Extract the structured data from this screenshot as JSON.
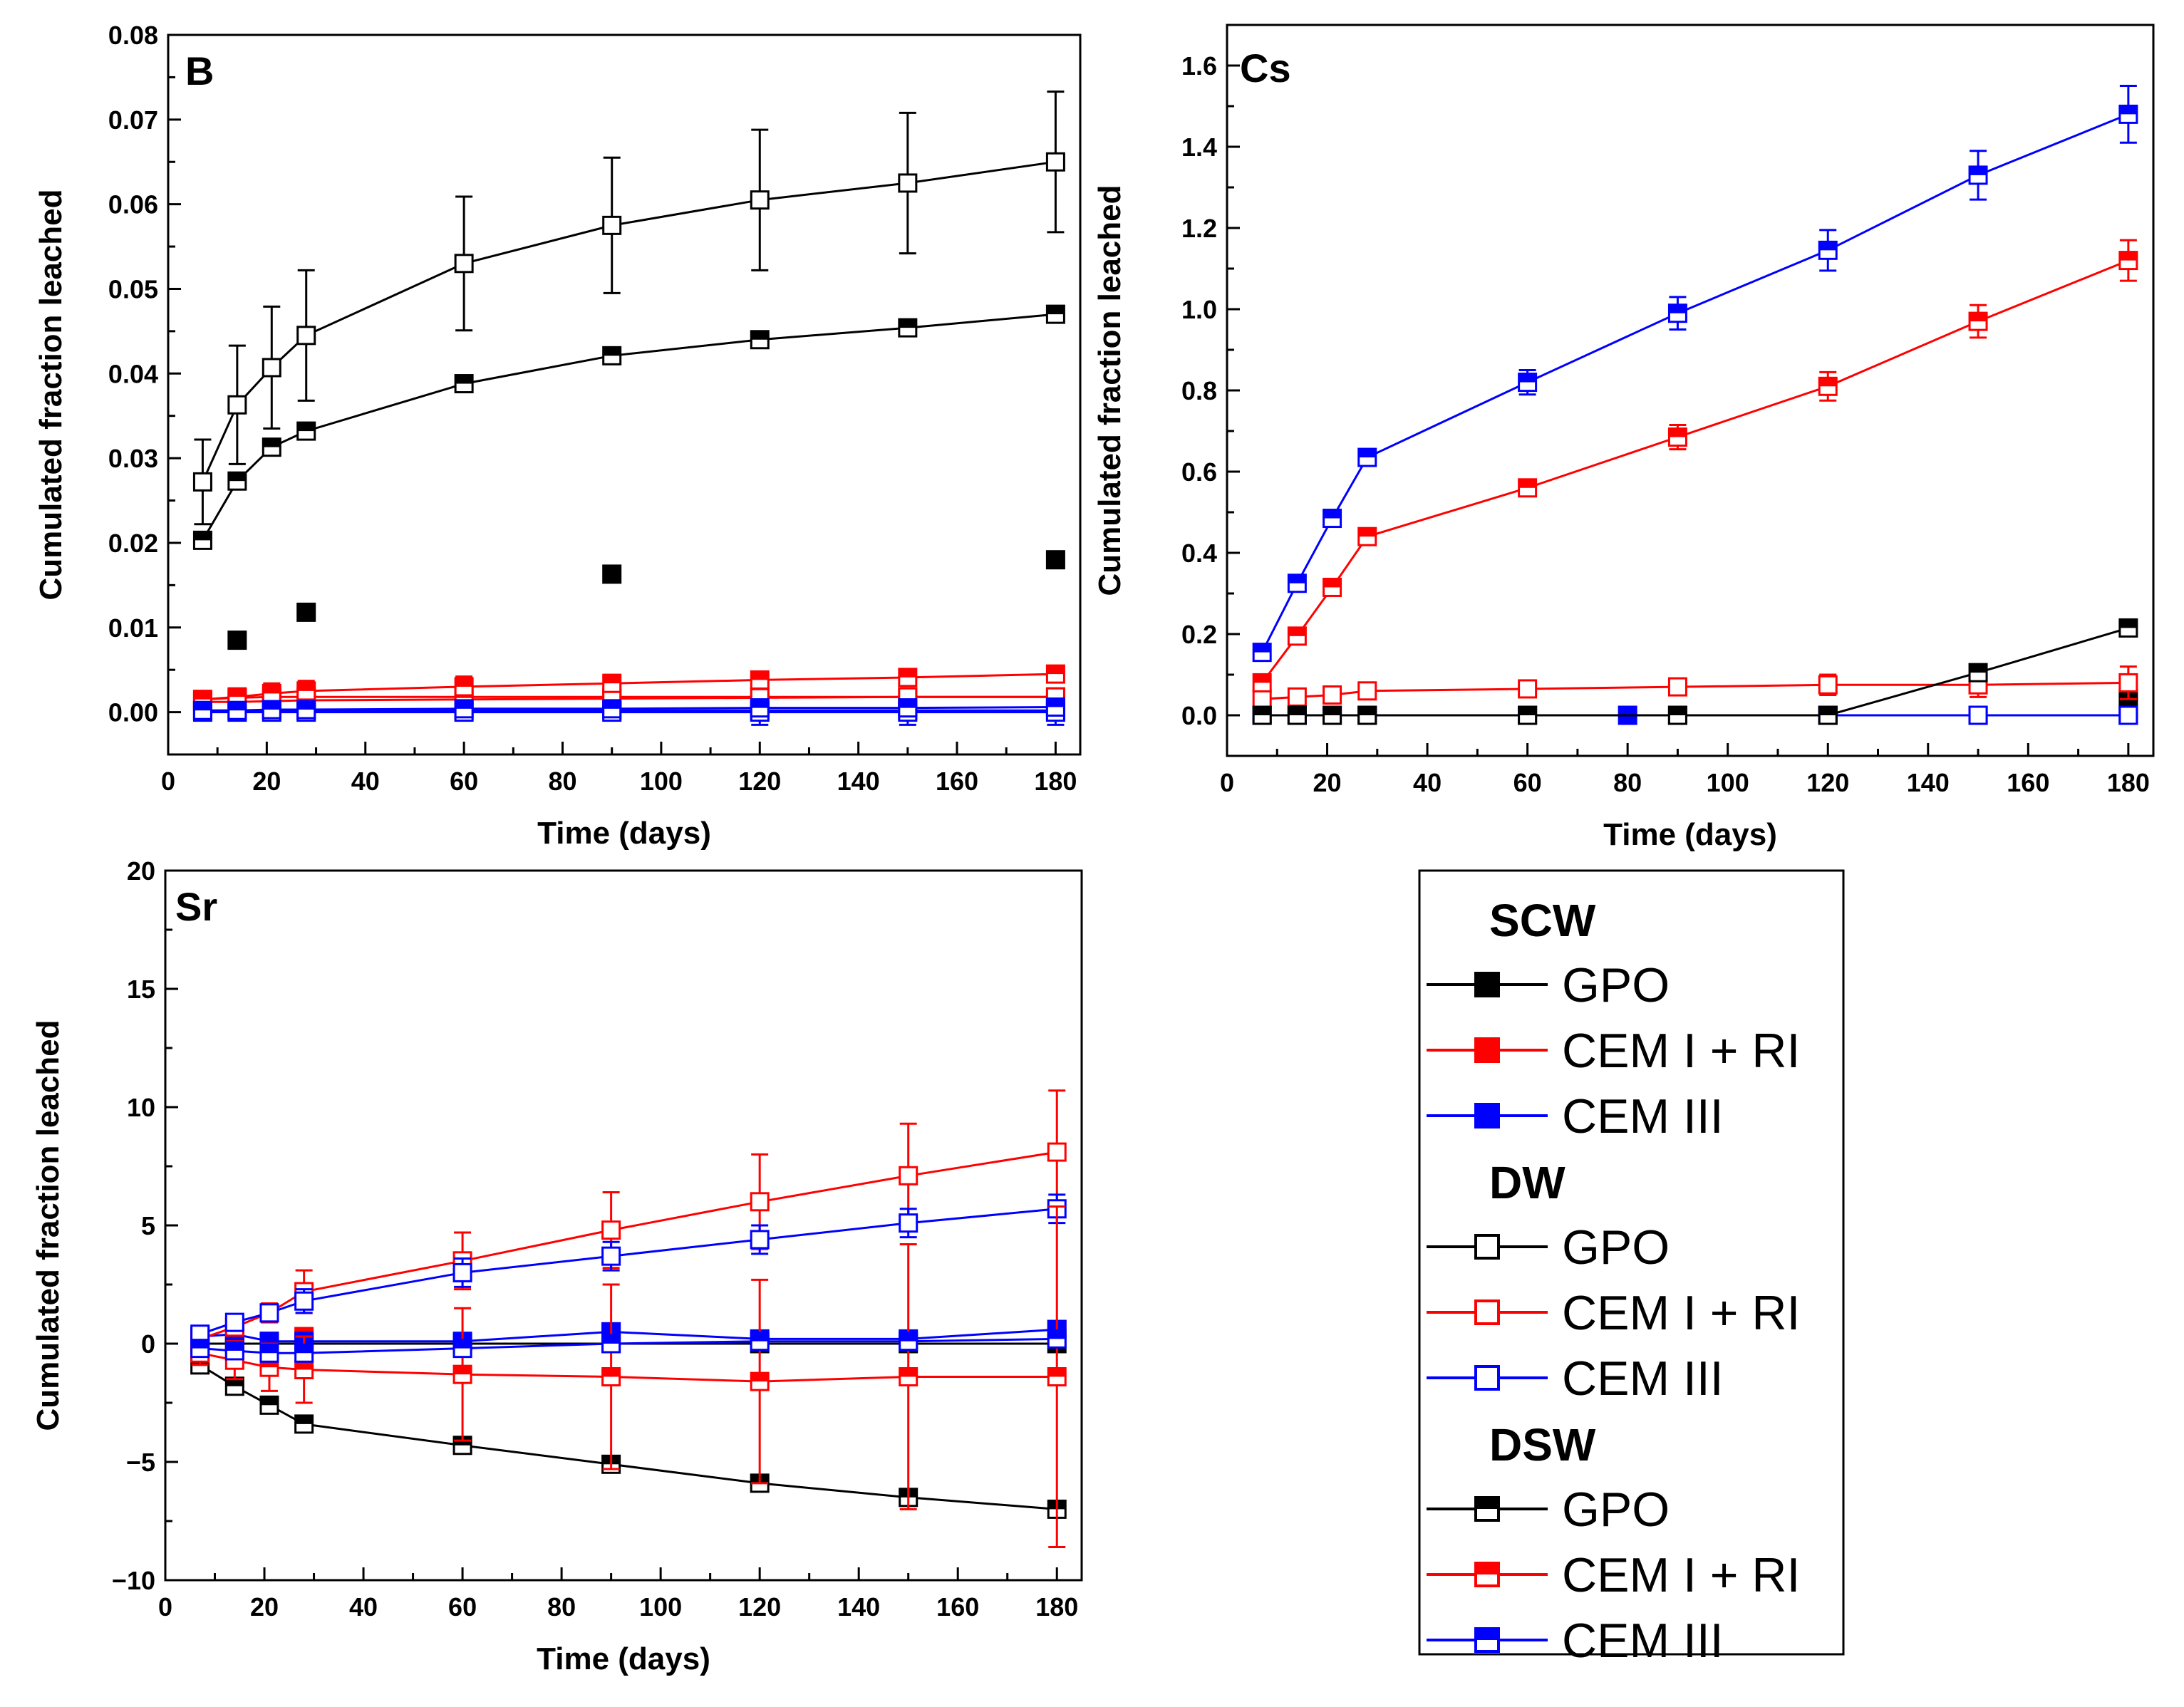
{
  "colors": {
    "black": "#000000",
    "red": "#ff0000",
    "blue": "#0000ff"
  },
  "legend": {
    "groups": [
      {
        "name": "SCW",
        "marker": "filled",
        "items": [
          {
            "label": "GPO",
            "color": "#000000"
          },
          {
            "label": "CEM I + RI",
            "color": "#ff0000"
          },
          {
            "label": "CEM III",
            "color": "#0000ff"
          }
        ]
      },
      {
        "name": "DW",
        "marker": "open",
        "items": [
          {
            "label": "GPO",
            "color": "#000000"
          },
          {
            "label": "CEM I + RI",
            "color": "#ff0000"
          },
          {
            "label": "CEM III",
            "color": "#0000ff"
          }
        ]
      },
      {
        "name": "DSW",
        "marker": "half",
        "items": [
          {
            "label": "GPO",
            "color": "#000000"
          },
          {
            "label": "CEM I + RI",
            "color": "#ff0000"
          },
          {
            "label": "CEM III",
            "color": "#0000ff"
          }
        ]
      }
    ]
  },
  "chart_data": [
    {
      "type": "line",
      "title": "B",
      "xlabel": "Time (days)",
      "ylabel": "Cumulated fraction leached",
      "xlim": [
        0,
        185
      ],
      "ylim": [
        -0.005,
        0.08
      ],
      "xticks": [
        0,
        20,
        40,
        60,
        80,
        100,
        120,
        140,
        160,
        180
      ],
      "yticks": [
        0.0,
        0.01,
        0.02,
        0.03,
        0.04,
        0.05,
        0.06,
        0.07,
        0.08
      ],
      "ytick_labels": [
        "0.00",
        "0.01",
        "0.02",
        "0.03",
        "0.04",
        "0.05",
        "0.06",
        "0.07",
        "0.08"
      ],
      "series": [
        {
          "name": "SCW GPO",
          "color": "#000000",
          "marker": "filled",
          "line": false,
          "x": [
            14,
            28,
            90,
            180
          ],
          "y": [
            0.0085,
            0.0118,
            0.0163,
            0.018
          ]
        },
        {
          "name": "SCW CEM I + RI",
          "color": "#ff0000",
          "marker": "filled",
          "line": true,
          "x": [
            7,
            14,
            21,
            28,
            60,
            90,
            120,
            150,
            180
          ],
          "y": [
            0.0015,
            0.0017,
            0.0018,
            0.0018,
            0.0018,
            0.0018,
            0.0018,
            0.0018,
            0.0018
          ]
        },
        {
          "name": "SCW CEM III",
          "color": "#0000ff",
          "marker": "filled",
          "line": true,
          "x": [
            7,
            14,
            21,
            28,
            60,
            90,
            120,
            150,
            180
          ],
          "y": [
            0.0002,
            0.0002,
            0.0002,
            0.0002,
            0.0002,
            0.0002,
            0.0002,
            0.0002,
            0.0002
          ]
        },
        {
          "name": "DW GPO",
          "color": "#000000",
          "marker": "open",
          "line": true,
          "x": [
            7,
            14,
            21,
            28,
            60,
            90,
            120,
            150,
            180
          ],
          "y": [
            0.0272,
            0.0363,
            0.0407,
            0.0445,
            0.053,
            0.0575,
            0.0605,
            0.0625,
            0.065
          ],
          "err": [
            0.005,
            0.007,
            0.0072,
            0.0077,
            0.0079,
            0.008,
            0.0083,
            0.0083,
            0.0083
          ]
        },
        {
          "name": "DW CEM I + RI",
          "color": "#ff0000",
          "marker": "open",
          "line": true,
          "x": [
            7,
            14,
            21,
            28,
            60,
            90,
            120,
            150,
            180
          ],
          "y": [
            0.0012,
            0.0012,
            0.0013,
            0.0014,
            0.0015,
            0.0016,
            0.0017,
            0.0018,
            0.0018
          ]
        },
        {
          "name": "DW CEM III",
          "color": "#0000ff",
          "marker": "open",
          "line": true,
          "x": [
            7,
            14,
            21,
            28,
            60,
            90,
            120,
            150,
            180
          ],
          "y": [
            0.0,
            0.0,
            0.0,
            0.0,
            0.0,
            0.0,
            0.0,
            0.0,
            0.0
          ],
          "err": [
            0.0,
            0.0,
            0.0,
            0.0,
            0.0,
            0.0,
            0.0015,
            0.0015,
            0.0015
          ]
        },
        {
          "name": "DSW GPO",
          "color": "#000000",
          "marker": "half",
          "line": true,
          "x": [
            7,
            14,
            21,
            28,
            60,
            90,
            120,
            150,
            180
          ],
          "y": [
            0.0203,
            0.0273,
            0.0313,
            0.0332,
            0.0388,
            0.0421,
            0.044,
            0.0454,
            0.047
          ]
        },
        {
          "name": "DSW CEM I + RI",
          "color": "#ff0000",
          "marker": "half",
          "line": true,
          "x": [
            7,
            14,
            21,
            28,
            60,
            90,
            120,
            150,
            180
          ],
          "y": [
            0.0015,
            0.0018,
            0.0022,
            0.0025,
            0.003,
            0.0034,
            0.0038,
            0.0041,
            0.0045
          ],
          "err": [
            0.001,
            0.001,
            0.0012,
            0.0012,
            0.0012,
            0.001,
            0.001,
            0.0008,
            0.0008
          ]
        },
        {
          "name": "DSW CEM III",
          "color": "#0000ff",
          "marker": "half",
          "line": true,
          "x": [
            7,
            14,
            21,
            28,
            60,
            90,
            120,
            150,
            180
          ],
          "y": [
            0.0002,
            0.0002,
            0.0003,
            0.0003,
            0.0004,
            0.0004,
            0.0005,
            0.0005,
            0.0006
          ]
        }
      ]
    },
    {
      "type": "line",
      "title": "Cs",
      "xlabel": "Time (days)",
      "ylabel": "Cumulated fraction leached",
      "xlim": [
        0,
        185
      ],
      "ylim": [
        -0.1,
        1.7
      ],
      "xticks": [
        0,
        20,
        40,
        60,
        80,
        100,
        120,
        140,
        160,
        180
      ],
      "yticks": [
        0.0,
        0.2,
        0.4,
        0.6,
        0.8,
        1.0,
        1.2,
        1.4,
        1.6
      ],
      "ytick_labels": [
        "0.0",
        "0.2",
        "0.4",
        "0.6",
        "0.8",
        "1.0",
        "1.2",
        "1.4",
        "1.6"
      ],
      "series": [
        {
          "name": "SCW GPO",
          "color": "#000000",
          "marker": "filled",
          "line": false,
          "x": [
            180
          ],
          "y": [
            0.04
          ]
        },
        {
          "name": "SCW CEM III",
          "color": "#0000ff",
          "marker": "filled",
          "line": true,
          "x": [
            80,
            90,
            120,
            150,
            180
          ],
          "y": [
            0.0,
            0.0,
            0.0,
            0.0,
            0.0
          ]
        },
        {
          "name": "DW GPO",
          "color": "#000000",
          "marker": "open",
          "line": true,
          "x": [
            7,
            14,
            21,
            28,
            60,
            90,
            120,
            150,
            180
          ],
          "y": [
            0.0,
            0.0,
            0.0,
            0.0,
            0.0,
            0.0,
            0.0,
            0.0,
            0.0
          ]
        },
        {
          "name": "DW CEM I + RI",
          "color": "#ff0000",
          "marker": "open",
          "line": true,
          "x": [
            7,
            14,
            21,
            28,
            60,
            90,
            120,
            150,
            180
          ],
          "y": [
            0.04,
            0.045,
            0.05,
            0.06,
            0.065,
            0.07,
            0.075,
            0.075,
            0.08
          ],
          "err": [
            0.01,
            0.01,
            0.012,
            0.015,
            0.015,
            0.02,
            0.025,
            0.03,
            0.04
          ]
        },
        {
          "name": "DW CEM III",
          "color": "#0000ff",
          "marker": "open",
          "line": true,
          "x": [
            7,
            14,
            21,
            28,
            60,
            90,
            120,
            150,
            180
          ],
          "y": [
            0.0,
            0.0,
            0.0,
            0.0,
            0.0,
            0.0,
            0.0,
            0.0,
            0.0
          ]
        },
        {
          "name": "DSW GPO",
          "color": "#000000",
          "marker": "half",
          "line": true,
          "x": [
            7,
            14,
            21,
            28,
            60,
            90,
            120,
            150,
            180
          ],
          "y": [
            0.0,
            0.0,
            0.0,
            0.0,
            0.0,
            0.0,
            0.0,
            0.105,
            0.215
          ]
        },
        {
          "name": "DSW CEM I + RI",
          "color": "#ff0000",
          "marker": "half",
          "line": true,
          "x": [
            7,
            14,
            21,
            28,
            60,
            90,
            120,
            150,
            180
          ],
          "y": [
            0.08,
            0.195,
            0.315,
            0.44,
            0.56,
            0.685,
            0.81,
            0.97,
            1.12
          ],
          "err": [
            0.01,
            0.012,
            0.015,
            0.015,
            0.02,
            0.03,
            0.035,
            0.04,
            0.05
          ]
        },
        {
          "name": "DSW CEM III",
          "color": "#0000ff",
          "marker": "half",
          "line": true,
          "x": [
            7,
            14,
            21,
            28,
            60,
            90,
            120,
            150,
            180
          ],
          "y": [
            0.155,
            0.325,
            0.485,
            0.635,
            0.82,
            0.99,
            1.145,
            1.33,
            1.48
          ],
          "err": [
            0.01,
            0.015,
            0.015,
            0.02,
            0.03,
            0.04,
            0.05,
            0.06,
            0.07
          ]
        }
      ]
    },
    {
      "type": "line",
      "title": "Sr",
      "xlabel": "Time (days)",
      "ylabel": "Cumulated fraction leached",
      "xlim": [
        0,
        185
      ],
      "ylim": [
        -10,
        20
      ],
      "xticks": [
        0,
        20,
        40,
        60,
        80,
        100,
        120,
        140,
        160,
        180
      ],
      "yticks": [
        -10,
        -5,
        0,
        5,
        10,
        15,
        20
      ],
      "ytick_labels": [
        "−10",
        "−5",
        "0",
        "5",
        "10",
        "15",
        "20"
      ],
      "series": [
        {
          "name": "SCW GPO",
          "color": "#000000",
          "marker": "filled",
          "line": true,
          "x": [
            7,
            14,
            21,
            28,
            60,
            90,
            120,
            150,
            180
          ],
          "y": [
            0.0,
            0.0,
            0.0,
            0.0,
            0.0,
            0.0,
            0.0,
            0.0,
            0.0
          ]
        },
        {
          "name": "SCW CEM I + RI",
          "color": "#ff0000",
          "marker": "filled",
          "line": false,
          "x": [
            14,
            21,
            28,
            90,
            180
          ],
          "y": [
            0.2,
            0.1,
            0.3,
            0.5,
            0.6
          ]
        },
        {
          "name": "SCW CEM III",
          "color": "#0000ff",
          "marker": "filled",
          "line": true,
          "x": [
            7,
            14,
            21,
            28,
            60,
            90,
            120,
            150,
            180
          ],
          "y": [
            0.3,
            0.4,
            0.1,
            0.1,
            0.1,
            0.5,
            0.2,
            0.2,
            0.6
          ]
        },
        {
          "name": "DW CEM I + RI",
          "color": "#ff0000",
          "marker": "open",
          "line": true,
          "x": [
            7,
            14,
            21,
            28,
            60,
            90,
            120,
            150,
            180
          ],
          "y": [
            0.2,
            0.7,
            1.3,
            2.2,
            3.5,
            4.8,
            6.0,
            7.1,
            8.1
          ],
          "err": [
            0.2,
            0.3,
            0.4,
            0.9,
            1.2,
            1.6,
            2.0,
            2.2,
            2.6
          ]
        },
        {
          "name": "DW CEM III",
          "color": "#0000ff",
          "marker": "open",
          "line": true,
          "x": [
            7,
            14,
            21,
            28,
            60,
            90,
            120,
            150,
            180
          ],
          "y": [
            0.4,
            0.9,
            1.3,
            1.8,
            3.0,
            3.7,
            4.4,
            5.1,
            5.7
          ],
          "err": [
            0.2,
            0.3,
            0.3,
            0.5,
            0.6,
            0.6,
            0.6,
            0.6,
            0.6
          ]
        },
        {
          "name": "DSW GPO",
          "color": "#000000",
          "marker": "half",
          "line": true,
          "x": [
            7,
            14,
            21,
            28,
            60,
            90,
            120,
            150,
            180
          ],
          "y": [
            -0.9,
            -1.8,
            -2.6,
            -3.4,
            -4.3,
            -5.1,
            -5.9,
            -6.5,
            -7.0
          ]
        },
        {
          "name": "DSW CEM I + RI",
          "color": "#ff0000",
          "marker": "half",
          "line": true,
          "x": [
            7,
            14,
            21,
            28,
            60,
            90,
            120,
            150,
            180
          ],
          "y": [
            -0.4,
            -0.7,
            -1.0,
            -1.1,
            -1.3,
            -1.4,
            -1.6,
            -1.4,
            -1.4
          ],
          "err": [
            0.5,
            0.8,
            1.0,
            1.4,
            2.8,
            3.9,
            4.3,
            5.6,
            7.2
          ]
        },
        {
          "name": "DSW CEM III",
          "color": "#0000ff",
          "marker": "half",
          "line": true,
          "x": [
            7,
            14,
            21,
            28,
            60,
            90,
            120,
            150,
            180
          ],
          "y": [
            -0.2,
            -0.3,
            -0.4,
            -0.4,
            -0.2,
            0.0,
            0.1,
            0.1,
            0.2
          ]
        }
      ]
    }
  ]
}
